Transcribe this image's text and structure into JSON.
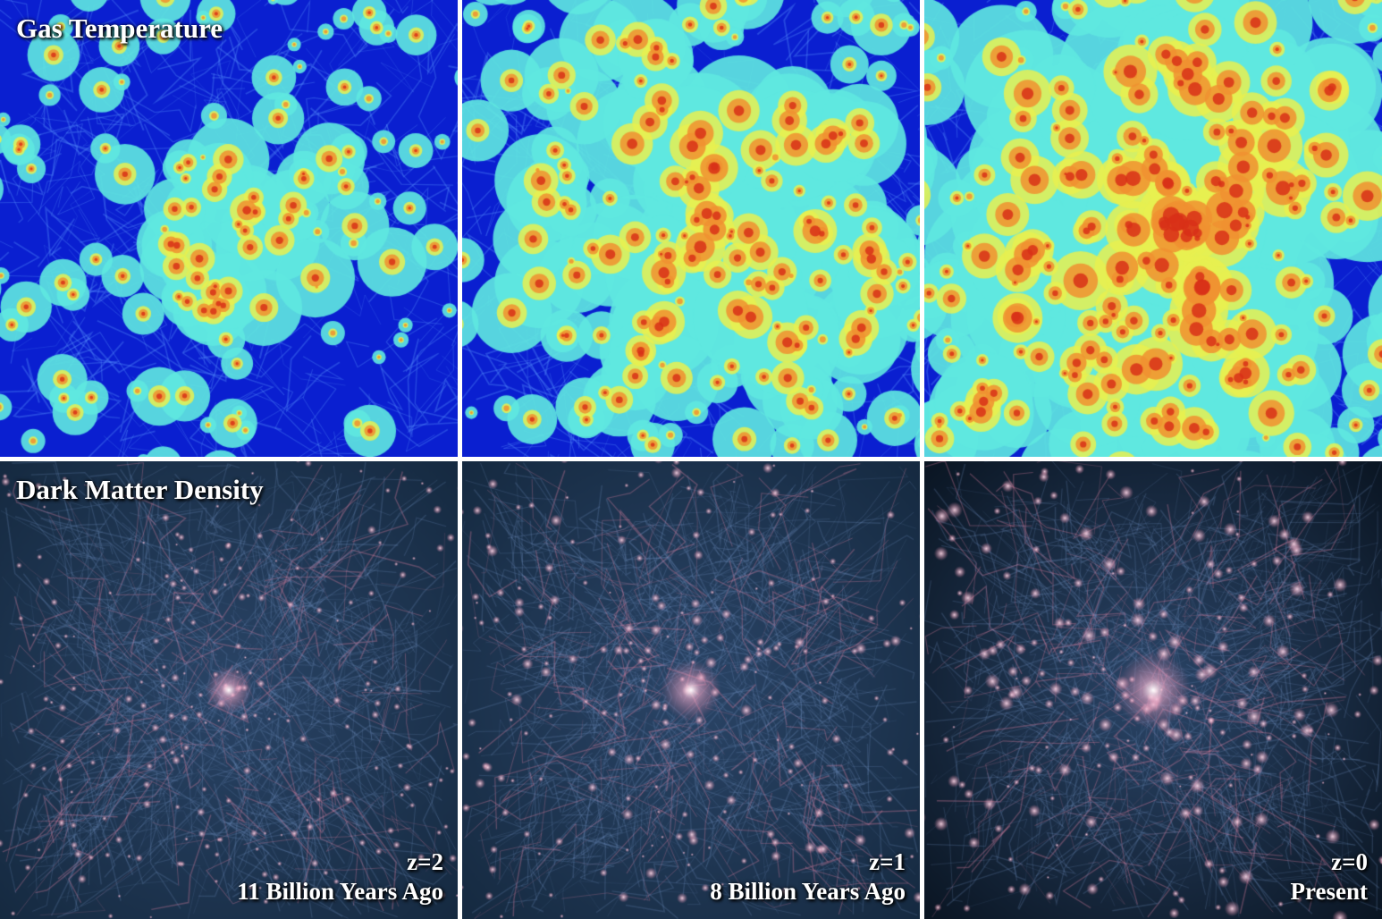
{
  "rows": [
    {
      "label": "Gas Temperature",
      "colormap": "jet",
      "colors": [
        "#0a1fd0",
        "#2a5cf0",
        "#5fe8e0",
        "#e8f050",
        "#f09030",
        "#d83018"
      ]
    },
    {
      "label": "Dark Matter Density",
      "colormap": "dark-blue-to-pink",
      "colors": [
        "#0c1a2c",
        "#2a4a70",
        "#7090c0",
        "#e080a0",
        "#ffffff"
      ]
    }
  ],
  "columns": [
    {
      "redshift": "z=2",
      "time": "11 Billion Years Ago",
      "structure_level": 0.25
    },
    {
      "redshift": "z=1",
      "time": "8 Billion Years Ago",
      "structure_level": 0.55
    },
    {
      "redshift": "z=0",
      "time": "Present",
      "structure_level": 0.9
    }
  ]
}
